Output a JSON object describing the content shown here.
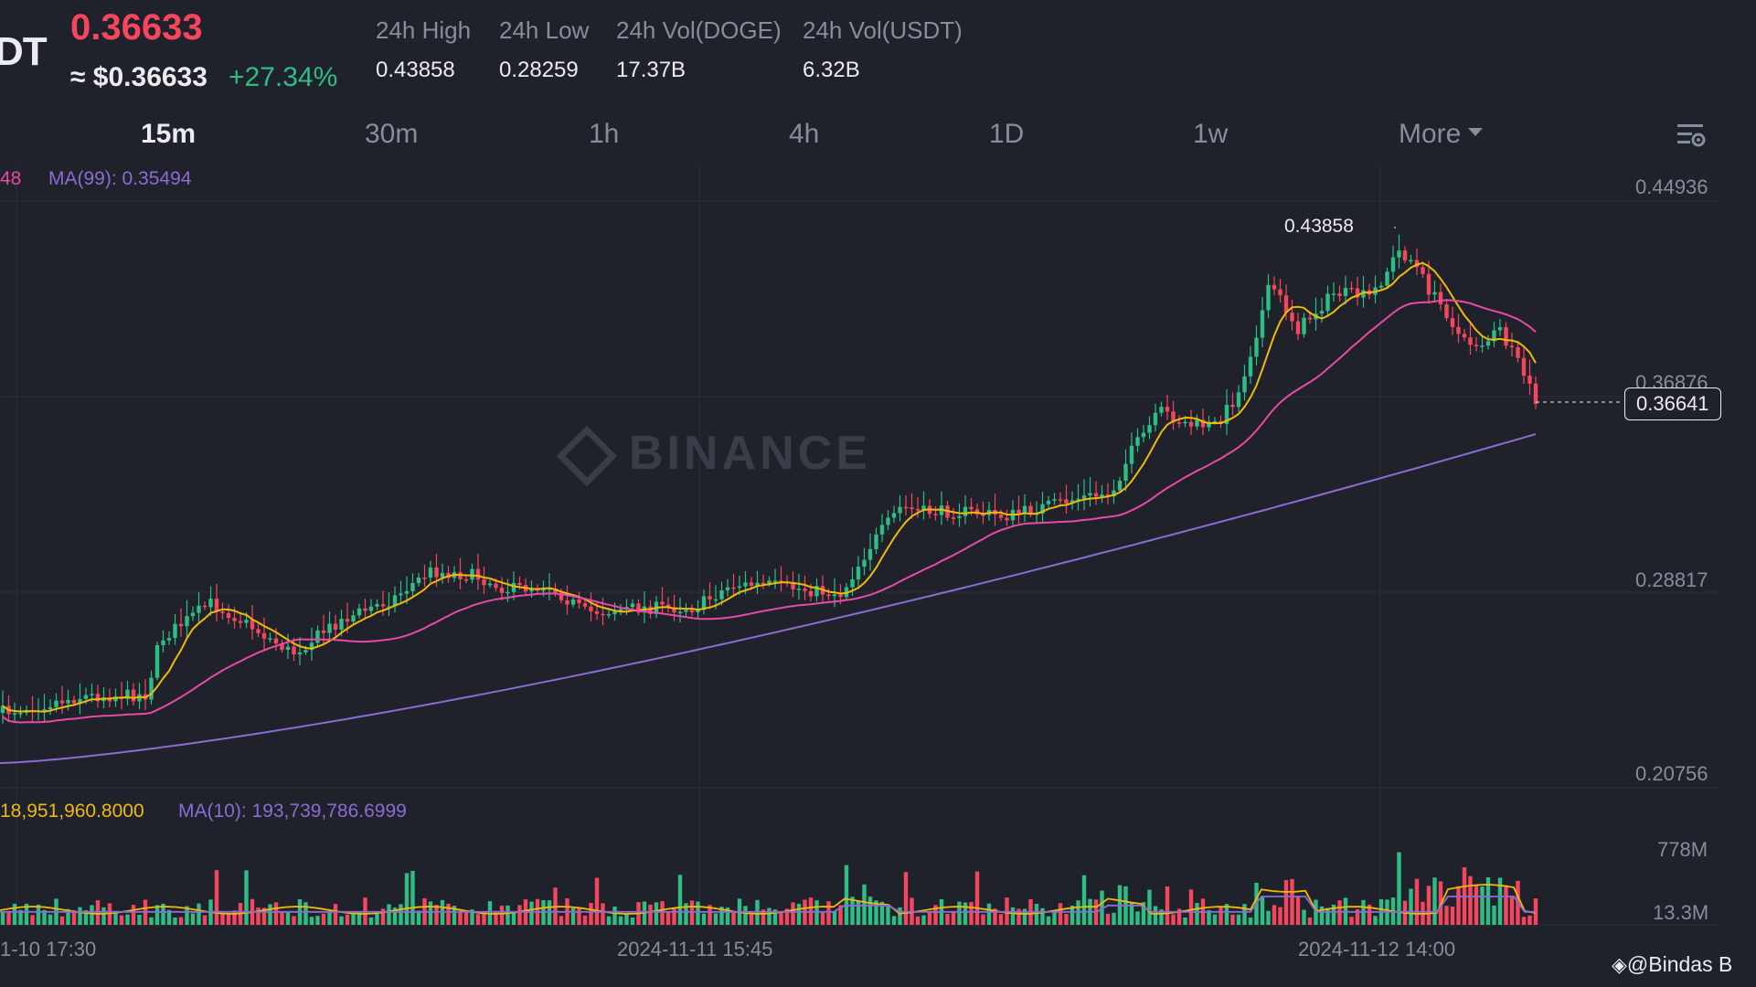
{
  "header": {
    "pair_fragment": "DT",
    "last_price": "0.36633",
    "approx_usd": "≈ $0.36633",
    "change_pct": "+27.34%",
    "stats": [
      {
        "label": "24h High",
        "value": "0.43858"
      },
      {
        "label": "24h Low",
        "value": "0.28259"
      },
      {
        "label": "24h Vol(DOGE)",
        "value": "17.37B"
      },
      {
        "label": "24h Vol(USDT)",
        "value": "6.32B"
      }
    ]
  },
  "tabs": {
    "items": [
      "15m",
      "30m",
      "1h",
      "4h",
      "1D",
      "1w"
    ],
    "more": "More",
    "active": "15m"
  },
  "chart": {
    "ma_legend_fragment": "48",
    "ma99_legend": "MA(99): 0.35494",
    "price_axis": [
      "0.44936",
      "0.36876",
      "0.28817",
      "0.20756"
    ],
    "current_price_tag": "0.36641",
    "high_marker": "0.43858",
    "watermark": "BINANCE",
    "vol_legend_fragment": "18,951,960.8000",
    "vol_ma10_legend": "MA(10): 193,739,786.6999",
    "vol_axis": [
      "778M",
      "13.3M"
    ],
    "time_axis": [
      "1-10 17:30",
      "2024-11-11 15:45",
      "2024-11-12 14:00"
    ]
  },
  "colors": {
    "background": "#1f222b",
    "up": "#2ebd85",
    "down": "#f6465d",
    "ma7": "#f0b90b",
    "ma25": "#e84aa6",
    "ma99": "#8b6cd3",
    "muted_text": "#848e9c"
  },
  "credit": "@Bindas B"
}
